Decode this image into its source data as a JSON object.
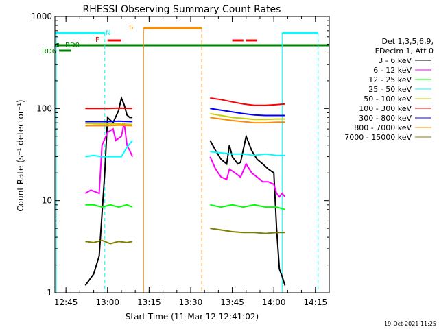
{
  "chart_data": {
    "type": "line",
    "title": "RHESSI Observing Summary Count Rates",
    "xlabel": "Start Time (11-Mar-12 12:41:02)",
    "ylabel": "Count Rate (s⁻¹ detector⁻¹)",
    "y_scale": "log",
    "ylim": [
      1,
      1000
    ],
    "xlim": [
      "12:41",
      "14:20"
    ],
    "x_tick_labels": [
      "12:45",
      "13:00",
      "13:15",
      "13:30",
      "13:45",
      "14:00",
      "14:15"
    ],
    "y_tick_labels": [
      "1",
      "10",
      "100",
      "1000"
    ],
    "legend": {
      "placement": "right",
      "header": [
        "Det 1,3,5,6,9,",
        "FDecim 1, Att 0"
      ],
      "entries": [
        "3 - 6 keV",
        "6 - 12 keV",
        "12 - 25 keV",
        "25 - 50 keV",
        "50 - 100 keV",
        "100 - 300 keV",
        "300 - 800 keV",
        "800 - 7000 keV",
        "7000 - 15000 keV"
      ]
    },
    "footer_timestamp": "19-Oct-2021 11:25",
    "state_markers": {
      "labels": [
        "N",
        "F",
        "S",
        "RD0",
        "RD6"
      ],
      "night_intervals": [
        [
          "12:41",
          "12:59"
        ],
        [
          "14:03",
          "14:16"
        ]
      ],
      "day_boundaries": [
        "12:59",
        "14:03",
        "14:16"
      ],
      "saa_interval": [
        "13:13",
        "13:34"
      ],
      "flare_intervals": [
        [
          "13:00",
          "13:05"
        ],
        [
          "13:45",
          "13:49"
        ],
        [
          "13:50",
          "13:54"
        ]
      ],
      "decim_interval": [
        "12:41",
        "14:20"
      ]
    },
    "series": [
      {
        "name": "3 - 6 keV",
        "color": "#000000",
        "segments": [
          [
            [
              "12:52",
              1.2
            ],
            [
              "12:55",
              1.6
            ],
            [
              "12:57",
              2.5
            ],
            [
              "12:59",
              20
            ],
            [
              "13:00",
              80
            ],
            [
              "13:02",
              70
            ],
            [
              "13:04",
              95
            ],
            [
              "13:05",
              130
            ],
            [
              "13:06",
              110
            ],
            [
              "13:07",
              85
            ],
            [
              "13:08",
              80
            ],
            [
              "13:09",
              80
            ]
          ],
          [
            [
              "13:37",
              45
            ],
            [
              "13:39",
              35
            ],
            [
              "13:41",
              28
            ],
            [
              "13:43",
              25
            ],
            [
              "13:44",
              40
            ],
            [
              "13:45",
              30
            ],
            [
              "13:47",
              25
            ],
            [
              "13:48",
              26
            ],
            [
              "13:50",
              50
            ],
            [
              "13:52",
              35
            ],
            [
              "13:54",
              28
            ],
            [
              "13:56",
              25
            ],
            [
              "13:58",
              22
            ],
            [
              "14:00",
              20
            ],
            [
              "14:01",
              5
            ],
            [
              "14:02",
              1.8
            ],
            [
              "14:03",
              1.5
            ],
            [
              "14:04",
              1.2
            ]
          ]
        ]
      },
      {
        "name": "6 - 12 keV",
        "color": "#ff00ff",
        "segments": [
          [
            [
              "12:52",
              12
            ],
            [
              "12:54",
              13
            ],
            [
              "12:57",
              12
            ],
            [
              "12:58",
              40
            ],
            [
              "13:00",
              55
            ],
            [
              "13:02",
              60
            ],
            [
              "13:03",
              45
            ],
            [
              "13:05",
              50
            ],
            [
              "13:06",
              70
            ],
            [
              "13:07",
              40
            ],
            [
              "13:08",
              35
            ],
            [
              "13:09",
              30
            ]
          ],
          [
            [
              "13:37",
              30
            ],
            [
              "13:39",
              22
            ],
            [
              "13:41",
              18
            ],
            [
              "13:43",
              17
            ],
            [
              "13:44",
              22
            ],
            [
              "13:46",
              20
            ],
            [
              "13:48",
              18
            ],
            [
              "13:50",
              25
            ],
            [
              "13:52",
              20
            ],
            [
              "13:54",
              18
            ],
            [
              "13:56",
              16
            ],
            [
              "13:58",
              16
            ],
            [
              "14:00",
              15
            ],
            [
              "14:01",
              12
            ],
            [
              "14:02",
              11
            ],
            [
              "14:03",
              12
            ],
            [
              "14:04",
              11
            ]
          ]
        ]
      },
      {
        "name": "12 - 25 keV",
        "color": "#00ff00",
        "segments": [
          [
            [
              "12:52",
              9
            ],
            [
              "12:55",
              9
            ],
            [
              "12:58",
              8.5
            ],
            [
              "13:01",
              9
            ],
            [
              "13:04",
              8.5
            ],
            [
              "13:07",
              9
            ],
            [
              "13:09",
              8.5
            ]
          ],
          [
            [
              "13:37",
              9
            ],
            [
              "13:41",
              8.5
            ],
            [
              "13:45",
              9
            ],
            [
              "13:49",
              8.5
            ],
            [
              "13:53",
              9
            ],
            [
              "13:57",
              8.5
            ],
            [
              "14:01",
              8.5
            ],
            [
              "14:04",
              8
            ]
          ]
        ]
      },
      {
        "name": "25 - 50 keV",
        "color": "#00ffff",
        "segments": [
          [
            [
              "12:52",
              30
            ],
            [
              "12:55",
              31
            ],
            [
              "12:58",
              30
            ],
            [
              "13:02",
              30
            ],
            [
              "13:05",
              30
            ],
            [
              "13:07",
              38
            ],
            [
              "13:09",
              45
            ]
          ],
          [
            [
              "13:37",
              34
            ],
            [
              "13:41",
              33
            ],
            [
              "13:45",
              32
            ],
            [
              "13:49",
              32
            ],
            [
              "13:53",
              31
            ],
            [
              "13:57",
              32
            ],
            [
              "14:01",
              31
            ],
            [
              "14:04",
              31
            ]
          ]
        ]
      },
      {
        "name": "50 - 100 keV",
        "color": "#cccc00",
        "segments": [
          [
            [
              "12:52",
              69
            ],
            [
              "12:56",
              68
            ],
            [
              "13:00",
              68
            ],
            [
              "13:04",
              68
            ],
            [
              "13:09",
              67
            ]
          ],
          [
            [
              "13:37",
              88
            ],
            [
              "13:41",
              84
            ],
            [
              "13:45",
              80
            ],
            [
              "13:49",
              78
            ],
            [
              "13:53",
              76
            ],
            [
              "13:57",
              76
            ],
            [
              "14:01",
              77
            ],
            [
              "14:04",
              77
            ]
          ]
        ]
      },
      {
        "name": "100 - 300 keV",
        "color": "#ff0000",
        "segments": [
          [
            [
              "12:52",
              100
            ],
            [
              "12:56",
              100
            ],
            [
              "13:00",
              100
            ],
            [
              "13:04",
              101
            ],
            [
              "13:09",
              100
            ]
          ],
          [
            [
              "13:37",
              130
            ],
            [
              "13:41",
              125
            ],
            [
              "13:45",
              118
            ],
            [
              "13:49",
              112
            ],
            [
              "13:53",
              108
            ],
            [
              "13:57",
              108
            ],
            [
              "14:01",
              110
            ],
            [
              "14:04",
              112
            ]
          ]
        ]
      },
      {
        "name": "300 - 800 keV",
        "color": "#0000ff",
        "segments": [
          [
            [
              "12:52",
              72
            ],
            [
              "12:56",
              72
            ],
            [
              "13:00",
              72
            ],
            [
              "13:04",
              73
            ],
            [
              "13:09",
              72
            ]
          ],
          [
            [
              "13:37",
              100
            ],
            [
              "13:41",
              96
            ],
            [
              "13:45",
              92
            ],
            [
              "13:49",
              88
            ],
            [
              "13:53",
              85
            ],
            [
              "13:57",
              84
            ],
            [
              "14:01",
              84
            ],
            [
              "14:04",
              84
            ]
          ]
        ]
      },
      {
        "name": "800 - 7000 keV",
        "color": "#ff8c00",
        "segments": [
          [
            [
              "12:52",
              65
            ],
            [
              "12:56",
              65
            ],
            [
              "13:00",
              65
            ],
            [
              "13:04",
              66
            ],
            [
              "13:09",
              65
            ]
          ],
          [
            [
              "13:37",
              80
            ],
            [
              "13:41",
              77
            ],
            [
              "13:45",
              74
            ],
            [
              "13:49",
              72
            ],
            [
              "13:53",
              70
            ],
            [
              "13:57",
              70
            ],
            [
              "14:01",
              71
            ],
            [
              "14:04",
              71
            ]
          ]
        ]
      },
      {
        "name": "7000 - 15000 keV",
        "color": "#808000",
        "segments": [
          [
            [
              "12:52",
              3.6
            ],
            [
              "12:55",
              3.5
            ],
            [
              "12:58",
              3.7
            ],
            [
              "13:01",
              3.4
            ],
            [
              "13:04",
              3.6
            ],
            [
              "13:07",
              3.5
            ],
            [
              "13:09",
              3.6
            ]
          ],
          [
            [
              "13:37",
              5
            ],
            [
              "13:41",
              4.8
            ],
            [
              "13:45",
              4.6
            ],
            [
              "13:49",
              4.5
            ],
            [
              "13:53",
              4.5
            ],
            [
              "13:57",
              4.4
            ],
            [
              "14:01",
              4.5
            ],
            [
              "14:04",
              4.5
            ]
          ]
        ]
      }
    ]
  }
}
